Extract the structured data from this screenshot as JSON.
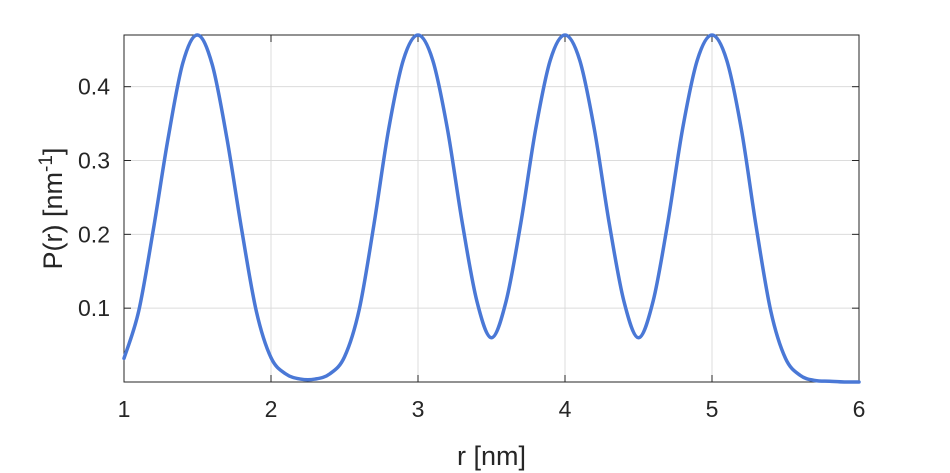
{
  "chart_data": {
    "type": "line",
    "title": "",
    "xlabel": "r [nm]",
    "ylabel": {
      "base": "P(r) [nm",
      "superscript": "-1",
      "close": "]"
    },
    "xlim": [
      1,
      6
    ],
    "ylim": [
      0,
      0.47
    ],
    "xticks": [
      1,
      2,
      3,
      4,
      5,
      6
    ],
    "yticks": [
      0.1,
      0.2,
      0.3,
      0.4
    ],
    "xtick_labels": [
      "1",
      "2",
      "3",
      "4",
      "5",
      "6"
    ],
    "ytick_labels": [
      "0.1",
      "0.2",
      "0.3",
      "0.4"
    ],
    "grid": true,
    "series": [
      {
        "color": "#4a78d6",
        "x": [
          1.0,
          1.1,
          1.2,
          1.3,
          1.4,
          1.5,
          1.6,
          1.7,
          1.8,
          1.9,
          2.0,
          2.1,
          2.2,
          2.3,
          2.4,
          2.5,
          2.6,
          2.7,
          2.8,
          2.9,
          3.0,
          3.1,
          3.2,
          3.3,
          3.4,
          3.5,
          3.6,
          3.7,
          3.8,
          3.9,
          4.0,
          4.1,
          4.2,
          4.3,
          4.4,
          4.5,
          4.6,
          4.7,
          4.8,
          4.9,
          5.0,
          5.1,
          5.2,
          5.3,
          5.4,
          5.5,
          5.6,
          5.7,
          5.8,
          5.9,
          6.0
        ],
        "y": [
          0.032,
          0.096,
          0.207,
          0.33,
          0.432,
          0.47,
          0.43,
          0.33,
          0.207,
          0.096,
          0.033,
          0.011,
          0.004,
          0.004,
          0.011,
          0.034,
          0.098,
          0.213,
          0.342,
          0.436,
          0.47,
          0.436,
          0.343,
          0.217,
          0.11,
          0.06,
          0.11,
          0.216,
          0.342,
          0.436,
          0.47,
          0.436,
          0.342,
          0.216,
          0.11,
          0.06,
          0.11,
          0.217,
          0.343,
          0.436,
          0.47,
          0.436,
          0.342,
          0.211,
          0.096,
          0.032,
          0.009,
          0.002,
          0.001,
          0.0,
          0.0
        ]
      }
    ]
  }
}
